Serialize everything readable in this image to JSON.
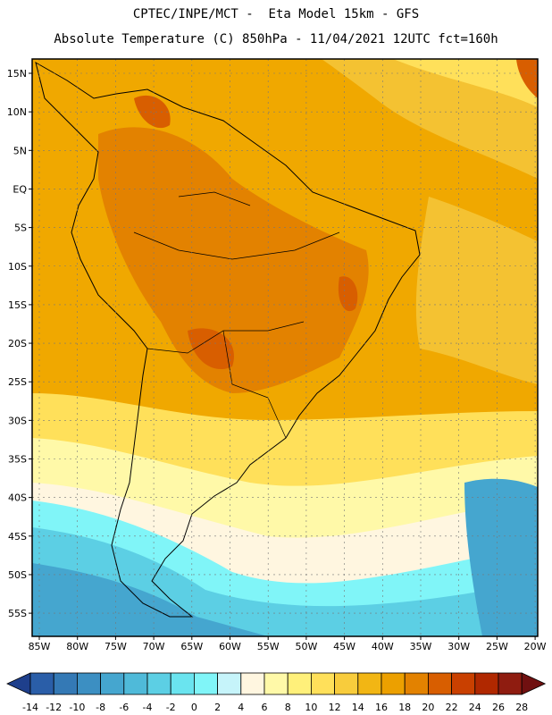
{
  "header": {
    "line1": "CPTEC/INPE/MCT -  Eta Model 15km - GFS",
    "line2": "Absolute Temperature (C) 850hPa - 11/04/2021 12UTC fct=160h"
  },
  "map": {
    "lat_labels": [
      "15N",
      "10N",
      "5N",
      "EQ",
      "5S",
      "10S",
      "15S",
      "20S",
      "25S",
      "30S",
      "35S",
      "40S",
      "45S",
      "50S",
      "55S"
    ],
    "lon_labels": [
      "85W",
      "80W",
      "75W",
      "70W",
      "65W",
      "60W",
      "55W",
      "50W",
      "45W",
      "40W",
      "35W",
      "30W",
      "25W",
      "20W"
    ],
    "grid_lines": true,
    "background_color": "#f0a800"
  },
  "legend": {
    "values": [
      "-14",
      "-12",
      "-10",
      "-8",
      "-6",
      "-4",
      "-2",
      "0",
      "2",
      "4",
      "6",
      "8",
      "10",
      "12",
      "14",
      "16",
      "18",
      "20",
      "22",
      "24",
      "26",
      "28"
    ],
    "colors": [
      "#1e3f8c",
      "#2a5ea8",
      "#3479b5",
      "#3c8fc2",
      "#45a6cf",
      "#4fbad9",
      "#5ccfe4",
      "#6ae4ef",
      "#80f5f8",
      "#c6f4fa",
      "#fff6e0",
      "#fff9a8",
      "#fff07a",
      "#ffe05a",
      "#f8cc3c",
      "#f2b614",
      "#eca000",
      "#e38200",
      "#d85e00",
      "#c94000",
      "#b02800",
      "#8f1c10",
      "#701010"
    ]
  }
}
